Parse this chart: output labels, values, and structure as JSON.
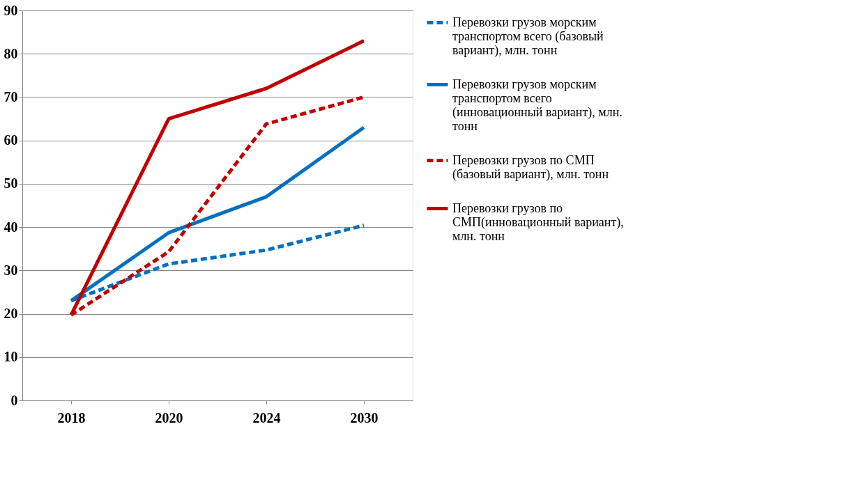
{
  "chart_data": {
    "type": "line",
    "categories": [
      "2018",
      "2020",
      "2024",
      "2030"
    ],
    "series": [
      {
        "name": "Перевозки грузов морским транспортом всего (базовый вариант), млн. тонн",
        "color": "#0070c0",
        "line_style": "dashed",
        "values": [
          23,
          31.5,
          34.7,
          40.4
        ]
      },
      {
        "name": "Перевозки грузов морским транспортом всего (инновационный вариант), млн. тонн",
        "color": "#0070c0",
        "line_style": "solid",
        "values": [
          23,
          38.7,
          47,
          63
        ]
      },
      {
        "name": "Перевозки грузов по СМП (базовый вариант), млн. тонн",
        "color": "#c00000",
        "line_style": "dashed",
        "values": [
          19.7,
          34.3,
          63.8,
          70
        ]
      },
      {
        "name": "Перевозки грузов по СМП(инновационный вариант), млн. тонн",
        "color": "#c00000",
        "line_style": "solid",
        "values": [
          19.7,
          65,
          72,
          83
        ]
      }
    ],
    "ylim": [
      0,
      90
    ],
    "yticks": [
      0,
      10,
      20,
      30,
      40,
      50,
      60,
      70,
      80,
      90
    ],
    "grid": "y",
    "legend": "right",
    "marker": "none"
  }
}
